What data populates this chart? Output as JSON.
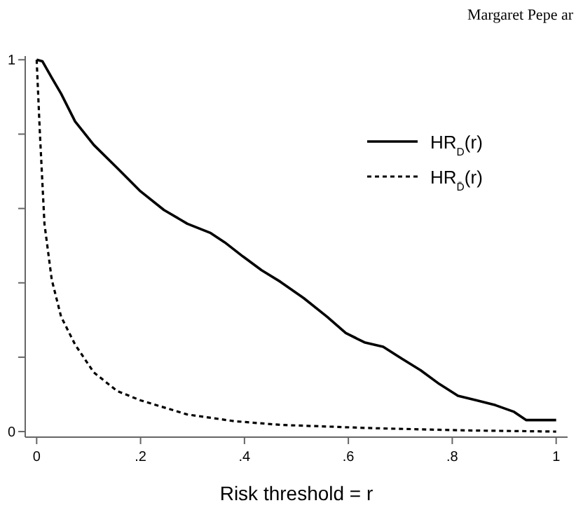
{
  "chart_data": {
    "type": "line",
    "xlabel": "Risk threshold = r",
    "annotations": [
      "Margaret Pepe ar"
    ],
    "xlim": [
      -0.022,
      1.022
    ],
    "ylim": [
      -0.015,
      1.01
    ],
    "xticks": [
      0,
      {
        "value": 0.2,
        "label": ".2"
      },
      {
        "value": 0.4,
        "label": ".4"
      },
      {
        "value": 0.6,
        "label": ".6"
      },
      {
        "value": 0.8,
        "label": ".8"
      },
      1
    ],
    "yticks": [
      0,
      {
        "value": 0.2,
        "label": null
      },
      {
        "value": 0.4,
        "label": null
      },
      {
        "value": 0.6,
        "label": null
      },
      {
        "value": 0.8,
        "label": null
      },
      1
    ],
    "grid": false,
    "legend": "top right",
    "marker": "none",
    "series": [
      {
        "name": "HR$_{D}$(r)",
        "color": "#000000",
        "line_style": "solid",
        "x": [
          0,
          0.011,
          0.029,
          0.047,
          0.074,
          0.11,
          0.155,
          0.2,
          0.245,
          0.29,
          0.335,
          0.362,
          0.397,
          0.433,
          0.469,
          0.514,
          0.559,
          0.595,
          0.631,
          0.667,
          0.703,
          0.739,
          0.775,
          0.811,
          0.847,
          0.883,
          0.919,
          0.942,
          1
        ],
        "values": [
          1,
          0.996,
          0.952,
          0.909,
          0.834,
          0.771,
          0.709,
          0.646,
          0.596,
          0.559,
          0.534,
          0.509,
          0.471,
          0.434,
          0.403,
          0.359,
          0.309,
          0.265,
          0.24,
          0.228,
          0.196,
          0.165,
          0.128,
          0.096,
          0.084,
          0.071,
          0.053,
          0.031,
          0.031
        ]
      },
      {
        "name": "HR$_{D̄}$(r)",
        "color": "#000000",
        "line_style": "dashed",
        "x": [
          0,
          0.006,
          0.015,
          0.029,
          0.047,
          0.074,
          0.11,
          0.155,
          0.2,
          0.29,
          0.38,
          0.469,
          0.649,
          0.829,
          1
        ],
        "values": [
          1,
          0.809,
          0.559,
          0.409,
          0.309,
          0.234,
          0.159,
          0.109,
          0.084,
          0.046,
          0.028,
          0.018,
          0.009,
          0.003,
          0
        ]
      }
    ]
  }
}
